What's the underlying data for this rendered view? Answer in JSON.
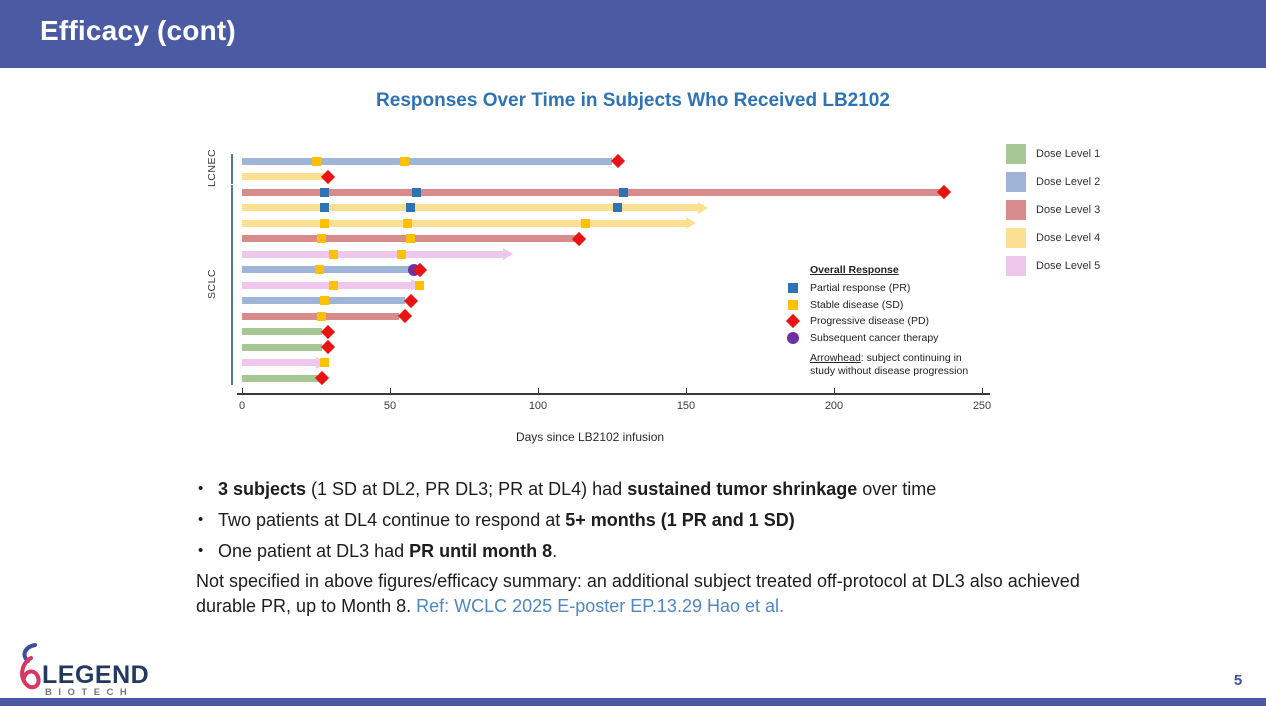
{
  "header": {
    "title": "Efficacy (cont)"
  },
  "page_number": "5",
  "logo": {
    "word": "LEGEND",
    "sub": "BIOTECH"
  },
  "colors": {
    "banner": "#4a5ba4",
    "chart_title": "#2e74b5",
    "bracket": "#4e7e90",
    "ref_blue": "#4e87c5"
  },
  "chart_data": {
    "type": "swimmer-bar",
    "title": "Responses Over Time in Subjects Who Received LB2102",
    "xlabel": "Days since LB2102 infusion",
    "xlim": [
      0,
      250
    ],
    "x_ticks": [
      0,
      50,
      100,
      150,
      200,
      250
    ],
    "groups": [
      "LCNEC",
      "SCLC"
    ],
    "dose_levels": [
      {
        "label": "Dose Level 1",
        "color": "#a6c694"
      },
      {
        "label": "Dose Level 2",
        "color": "#9eb5d7"
      },
      {
        "label": "Dose Level 3",
        "color": "#d88b8b"
      },
      {
        "label": "Dose Level 4",
        "color": "#fbdf92"
      },
      {
        "label": "Dose Level 5",
        "color": "#efc7ed"
      }
    ],
    "marker_colors": {
      "PR": "#2e74b4",
      "SD": "#ffc000",
      "PD": "#ea1313",
      "SCT": "#7030a0"
    },
    "response_legend": {
      "title": "Overall Response",
      "items": [
        {
          "label": "Partial response (PR)",
          "marker": "square",
          "type": "PR"
        },
        {
          "label": "Stable disease (SD)",
          "marker": "square",
          "type": "SD"
        },
        {
          "label": "Progressive disease (PD)",
          "marker": "diamond",
          "type": "PD"
        },
        {
          "label": "Subsequent cancer therapy",
          "marker": "circle",
          "type": "SCT"
        }
      ],
      "arrow_note_line1": [
        {
          "t": "Arrowhead",
          "u": 1
        },
        {
          "t": ": subject continuing in"
        }
      ],
      "arrow_note_line2": [
        {
          "t": "study without disease progression"
        }
      ]
    },
    "subjects": [
      {
        "group": "LCNEC",
        "dose": 2,
        "end": 125,
        "arrow": false,
        "markers": [
          {
            "day": 25,
            "type": "SD"
          },
          {
            "day": 55,
            "type": "SD"
          },
          {
            "day": 127,
            "type": "PD"
          }
        ]
      },
      {
        "group": "LCNEC",
        "dose": 4,
        "end": 28,
        "arrow": false,
        "markers": [
          {
            "day": 29,
            "type": "PD"
          }
        ]
      },
      {
        "group": "SCLC",
        "dose": 3,
        "end": 236,
        "arrow": false,
        "markers": [
          {
            "day": 28,
            "type": "PR"
          },
          {
            "day": 59,
            "type": "PR"
          },
          {
            "day": 129,
            "type": "PR"
          },
          {
            "day": 237,
            "type": "PD"
          }
        ]
      },
      {
        "group": "SCLC",
        "dose": 4,
        "end": 154,
        "arrow": true,
        "markers": [
          {
            "day": 28,
            "type": "PR"
          },
          {
            "day": 57,
            "type": "PR"
          },
          {
            "day": 127,
            "type": "PR"
          }
        ]
      },
      {
        "group": "SCLC",
        "dose": 4,
        "end": 150,
        "arrow": true,
        "markers": [
          {
            "day": 28,
            "type": "SD"
          },
          {
            "day": 56,
            "type": "SD"
          },
          {
            "day": 116,
            "type": "SD"
          }
        ]
      },
      {
        "group": "SCLC",
        "dose": 3,
        "end": 113,
        "arrow": false,
        "markers": [
          {
            "day": 27,
            "type": "SD"
          },
          {
            "day": 57,
            "type": "SD"
          },
          {
            "day": 114,
            "type": "PD"
          }
        ]
      },
      {
        "group": "SCLC",
        "dose": 5,
        "end": 88,
        "arrow": true,
        "markers": [
          {
            "day": 31,
            "type": "SD"
          },
          {
            "day": 54,
            "type": "SD"
          }
        ]
      },
      {
        "group": "SCLC",
        "dose": 2,
        "end": 58,
        "arrow": false,
        "markers": [
          {
            "day": 26,
            "type": "SD"
          },
          {
            "day": 58,
            "type": "SCT"
          },
          {
            "day": 60,
            "type": "PD"
          }
        ]
      },
      {
        "group": "SCLC",
        "dose": 5,
        "end": 57,
        "arrow": true,
        "markers": [
          {
            "day": 31,
            "type": "SD"
          },
          {
            "day": 60,
            "type": "SD"
          }
        ]
      },
      {
        "group": "SCLC",
        "dose": 2,
        "end": 55,
        "arrow": false,
        "markers": [
          {
            "day": 28,
            "type": "SD"
          },
          {
            "day": 57,
            "type": "PD"
          }
        ]
      },
      {
        "group": "SCLC",
        "dose": 3,
        "end": 53,
        "arrow": false,
        "markers": [
          {
            "day": 27,
            "type": "SD"
          },
          {
            "day": 55,
            "type": "PD"
          }
        ]
      },
      {
        "group": "SCLC",
        "dose": 1,
        "end": 27,
        "arrow": false,
        "markers": [
          {
            "day": 29,
            "type": "PD"
          }
        ]
      },
      {
        "group": "SCLC",
        "dose": 1,
        "end": 27,
        "arrow": false,
        "markers": [
          {
            "day": 29,
            "type": "PD"
          }
        ]
      },
      {
        "group": "SCLC",
        "dose": 5,
        "end": 25,
        "arrow": true,
        "markers": [
          {
            "day": 28,
            "type": "SD"
          }
        ]
      },
      {
        "group": "SCLC",
        "dose": 1,
        "end": 26,
        "arrow": false,
        "markers": [
          {
            "day": 27,
            "type": "PD"
          }
        ]
      }
    ]
  },
  "bullets": [
    {
      "segments": [
        {
          "t": "3 subjects",
          "b": 1
        },
        {
          "t": " (1 SD at DL2, PR DL3; PR at DL4) had "
        },
        {
          "t": "sustained tumor shrinkage",
          "b": 1
        },
        {
          "t": " over time"
        }
      ]
    },
    {
      "segments": [
        {
          "t": "Two patients at DL4 continue to respond at "
        },
        {
          "t": "5+ months (1 PR and 1 SD)",
          "b": 1
        }
      ]
    },
    {
      "segments": [
        {
          "t": "One patient at DL3 had "
        },
        {
          "t": "PR until month 8",
          "b": 1
        },
        {
          "t": "."
        }
      ]
    }
  ],
  "note": {
    "segments": [
      {
        "t": "Not specified in above figures/efficacy summary: an additional subject treated off-protocol at DL3 also achieved durable PR, up to Month 8. "
      },
      {
        "t": "Ref: WCLC 2025 E-poster EP.13.29 Hao et al.",
        "c": "#4e87c5"
      }
    ]
  }
}
